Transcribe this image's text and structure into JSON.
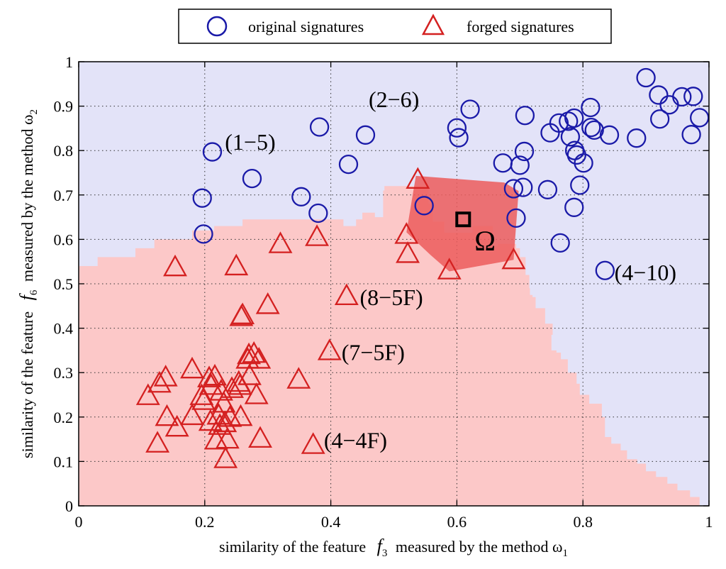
{
  "chart_data": {
    "type": "scatter",
    "xlim": [
      0,
      1
    ],
    "ylim": [
      0,
      1
    ],
    "grid": true,
    "legend_position": "top-center",
    "x_ticks": [
      "0",
      "0.2",
      "0.4",
      "0.6",
      "0.8",
      "1"
    ],
    "y_ticks": [
      "0",
      "0.1",
      "0.2",
      "0.3",
      "0.4",
      "0.5",
      "0.6",
      "0.7",
      "0.8",
      "0.9",
      "1"
    ],
    "xlabel": {
      "prefix": "similarity of the feature",
      "var": "f",
      "var_sub": "3",
      "middle": "measured by the method ω",
      "method_sub": "1"
    },
    "ylabel": {
      "prefix": "similarity of the feature",
      "var": "f",
      "var_sub": "6",
      "middle": "measured by the method ω",
      "method_sub": "2"
    },
    "colors": {
      "original": "#1a1aa8",
      "forged": "#d42020",
      "region_original": "#e3e3f8",
      "region_forged": "#fcc8c8",
      "hull": "#ec5c5c"
    },
    "series": [
      {
        "name": "original signatures",
        "marker": "circle",
        "points": [
          [
            0.196,
            0.693
          ],
          [
            0.198,
            0.612
          ],
          [
            0.212,
            0.797
          ],
          [
            0.275,
            0.737
          ],
          [
            0.353,
            0.696
          ],
          [
            0.38,
            0.659
          ],
          [
            0.382,
            0.853
          ],
          [
            0.428,
            0.769
          ],
          [
            0.455,
            0.835
          ],
          [
            0.548,
            0.676
          ],
          [
            0.6,
            0.851
          ],
          [
            0.603,
            0.829
          ],
          [
            0.621,
            0.893
          ],
          [
            0.673,
            0.772
          ],
          [
            0.69,
            0.714
          ],
          [
            0.694,
            0.648
          ],
          [
            0.7,
            0.767
          ],
          [
            0.705,
            0.717
          ],
          [
            0.707,
            0.798
          ],
          [
            0.708,
            0.879
          ],
          [
            0.744,
            0.712
          ],
          [
            0.748,
            0.84
          ],
          [
            0.762,
            0.862
          ],
          [
            0.764,
            0.592
          ],
          [
            0.777,
            0.866
          ],
          [
            0.78,
            0.831
          ],
          [
            0.786,
            0.873
          ],
          [
            0.786,
            0.672
          ],
          [
            0.787,
            0.8
          ],
          [
            0.79,
            0.79
          ],
          [
            0.795,
            0.722
          ],
          [
            0.801,
            0.772
          ],
          [
            0.812,
            0.897
          ],
          [
            0.813,
            0.852
          ],
          [
            0.818,
            0.846
          ],
          [
            0.835,
            0.53
          ],
          [
            0.842,
            0.835
          ],
          [
            0.885,
            0.828
          ],
          [
            0.9,
            0.964
          ],
          [
            0.92,
            0.925
          ],
          [
            0.922,
            0.871
          ],
          [
            0.937,
            0.903
          ],
          [
            0.957,
            0.921
          ],
          [
            0.972,
            0.836
          ],
          [
            0.975,
            0.922
          ],
          [
            0.985,
            0.874
          ]
        ]
      },
      {
        "name": "forged signatures",
        "marker": "triangle",
        "points": [
          [
            0.11,
            0.248
          ],
          [
            0.125,
            0.141
          ],
          [
            0.128,
            0.276
          ],
          [
            0.138,
            0.29
          ],
          [
            0.14,
            0.201
          ],
          [
            0.156,
            0.177
          ],
          [
            0.153,
            0.538
          ],
          [
            0.18,
            0.308
          ],
          [
            0.18,
            0.203
          ],
          [
            0.195,
            0.248
          ],
          [
            0.198,
            0.237
          ],
          [
            0.207,
            0.288
          ],
          [
            0.209,
            0.19
          ],
          [
            0.21,
            0.271
          ],
          [
            0.216,
            0.292
          ],
          [
            0.218,
            0.148
          ],
          [
            0.222,
            0.204
          ],
          [
            0.224,
            0.181
          ],
          [
            0.226,
            0.258
          ],
          [
            0.23,
            0.231
          ],
          [
            0.232,
            0.187
          ],
          [
            0.233,
            0.106
          ],
          [
            0.236,
            0.15
          ],
          [
            0.24,
            0.199
          ],
          [
            0.243,
            0.264
          ],
          [
            0.25,
            0.54
          ],
          [
            0.254,
            0.278
          ],
          [
            0.256,
            0.271
          ],
          [
            0.257,
            0.201
          ],
          [
            0.258,
            0.426
          ],
          [
            0.26,
            0.43
          ],
          [
            0.268,
            0.33
          ],
          [
            0.27,
            0.34
          ],
          [
            0.271,
            0.293
          ],
          [
            0.278,
            0.343
          ],
          [
            0.282,
            0.25
          ],
          [
            0.286,
            0.33
          ],
          [
            0.288,
            0.152
          ],
          [
            0.3,
            0.453
          ],
          [
            0.32,
            0.59
          ],
          [
            0.349,
            0.285
          ],
          [
            0.372,
            0.138
          ],
          [
            0.378,
            0.606
          ],
          [
            0.398,
            0.349
          ],
          [
            0.425,
            0.473
          ],
          [
            0.52,
            0.611
          ],
          [
            0.522,
            0.568
          ],
          [
            0.538,
            0.735
          ],
          [
            0.588,
            0.531
          ],
          [
            0.69,
            0.554
          ]
        ]
      }
    ],
    "annotations": [
      {
        "text": "(1−5)",
        "x": 0.232,
        "y": 0.802
      },
      {
        "text": "(2−6)",
        "x": 0.46,
        "y": 0.898
      },
      {
        "text": "(4−10)",
        "x": 0.85,
        "y": 0.508
      },
      {
        "text": "(8−5F)",
        "x": 0.446,
        "y": 0.452
      },
      {
        "text": "(7−5F)",
        "x": 0.417,
        "y": 0.328
      },
      {
        "text": "(4−4F)",
        "x": 0.389,
        "y": 0.13
      }
    ],
    "omega": {
      "label": "Ω",
      "x": 0.61,
      "y": 0.645,
      "label_x": 0.628,
      "label_y": 0.575
    },
    "hull": [
      [
        0.535,
        0.743
      ],
      [
        0.675,
        0.728
      ],
      [
        0.698,
        0.709
      ],
      [
        0.69,
        0.554
      ],
      [
        0.588,
        0.528
      ],
      [
        0.558,
        0.565
      ],
      [
        0.52,
        0.616
      ]
    ],
    "forged_region_profile": [
      [
        0.0,
        0.54
      ],
      [
        0.03,
        0.54
      ],
      [
        0.03,
        0.56
      ],
      [
        0.09,
        0.56
      ],
      [
        0.09,
        0.58
      ],
      [
        0.12,
        0.58
      ],
      [
        0.12,
        0.6
      ],
      [
        0.18,
        0.6
      ],
      [
        0.18,
        0.62
      ],
      [
        0.215,
        0.62
      ],
      [
        0.215,
        0.63
      ],
      [
        0.26,
        0.63
      ],
      [
        0.26,
        0.645
      ],
      [
        0.42,
        0.645
      ],
      [
        0.42,
        0.63
      ],
      [
        0.44,
        0.63
      ],
      [
        0.44,
        0.645
      ],
      [
        0.45,
        0.645
      ],
      [
        0.45,
        0.66
      ],
      [
        0.47,
        0.66
      ],
      [
        0.47,
        0.65
      ],
      [
        0.483,
        0.65
      ],
      [
        0.483,
        0.71
      ],
      [
        0.485,
        0.71
      ],
      [
        0.485,
        0.72
      ],
      [
        0.555,
        0.72
      ],
      [
        0.555,
        0.68
      ],
      [
        0.562,
        0.68
      ],
      [
        0.562,
        0.64
      ],
      [
        0.58,
        0.64
      ],
      [
        0.58,
        0.615
      ],
      [
        0.625,
        0.615
      ],
      [
        0.625,
        0.63
      ],
      [
        0.657,
        0.63
      ],
      [
        0.657,
        0.585
      ],
      [
        0.665,
        0.585
      ],
      [
        0.665,
        0.59
      ],
      [
        0.694,
        0.59
      ],
      [
        0.694,
        0.58
      ],
      [
        0.7,
        0.58
      ],
      [
        0.7,
        0.56
      ],
      [
        0.709,
        0.56
      ],
      [
        0.709,
        0.52
      ],
      [
        0.715,
        0.52
      ],
      [
        0.715,
        0.49
      ],
      [
        0.716,
        0.49
      ],
      [
        0.716,
        0.475
      ],
      [
        0.72,
        0.475
      ],
      [
        0.72,
        0.47
      ],
      [
        0.725,
        0.47
      ],
      [
        0.725,
        0.445
      ],
      [
        0.74,
        0.445
      ],
      [
        0.74,
        0.41
      ],
      [
        0.752,
        0.41
      ],
      [
        0.752,
        0.385
      ],
      [
        0.75,
        0.385
      ],
      [
        0.75,
        0.35
      ],
      [
        0.758,
        0.35
      ],
      [
        0.758,
        0.345
      ],
      [
        0.765,
        0.345
      ],
      [
        0.765,
        0.33
      ],
      [
        0.776,
        0.33
      ],
      [
        0.776,
        0.3
      ],
      [
        0.79,
        0.3
      ],
      [
        0.79,
        0.275
      ],
      [
        0.795,
        0.275
      ],
      [
        0.795,
        0.25
      ],
      [
        0.81,
        0.25
      ],
      [
        0.81,
        0.23
      ],
      [
        0.83,
        0.23
      ],
      [
        0.83,
        0.2
      ],
      [
        0.835,
        0.2
      ],
      [
        0.835,
        0.155
      ],
      [
        0.845,
        0.155
      ],
      [
        0.845,
        0.14
      ],
      [
        0.86,
        0.14
      ],
      [
        0.86,
        0.125
      ],
      [
        0.87,
        0.125
      ],
      [
        0.87,
        0.105
      ],
      [
        0.886,
        0.105
      ],
      [
        0.886,
        0.095
      ],
      [
        0.9,
        0.095
      ],
      [
        0.9,
        0.078
      ],
      [
        0.916,
        0.078
      ],
      [
        0.916,
        0.065
      ],
      [
        0.934,
        0.065
      ],
      [
        0.934,
        0.05
      ],
      [
        0.95,
        0.05
      ],
      [
        0.95,
        0.035
      ],
      [
        0.97,
        0.035
      ],
      [
        0.97,
        0.02
      ],
      [
        0.985,
        0.02
      ],
      [
        0.985,
        0.0
      ]
    ]
  }
}
